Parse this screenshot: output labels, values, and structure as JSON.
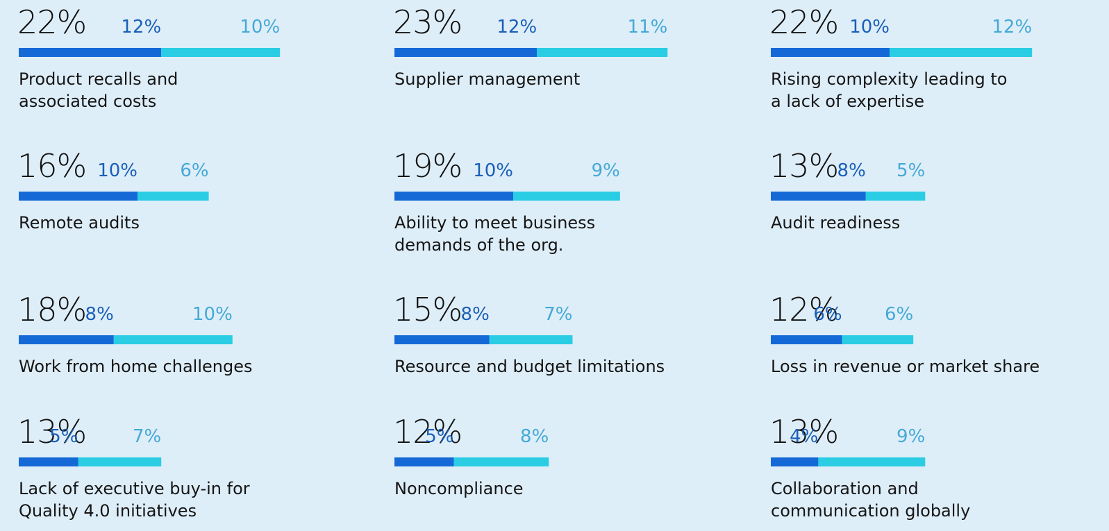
{
  "chart_data": [
    {
      "type": "stacked_bar",
      "title": [
        "Product recalls and",
        "associated costs"
      ],
      "total": 22,
      "total_label": "22%",
      "series": [
        {
          "color": "#1569d6",
          "values": [
            12
          ],
          "value_labels": [
            "12%"
          ]
        },
        {
          "color": "#2acde3",
          "values": [
            10
          ],
          "value_labels": [
            "10%"
          ]
        }
      ]
    },
    {
      "type": "stacked_bar",
      "title": [
        "Supplier management"
      ],
      "total": 23,
      "total_label": "23%",
      "series": [
        {
          "color": "#1569d6",
          "values": [
            12
          ],
          "value_labels": [
            "12%"
          ]
        },
        {
          "color": "#2acde3",
          "values": [
            11
          ],
          "value_labels": [
            "11%"
          ]
        }
      ]
    },
    {
      "type": "stacked_bar",
      "title": [
        "Rising complexity leading to",
        "a lack of expertise"
      ],
      "total": 22,
      "total_label": "22%",
      "series": [
        {
          "color": "#1569d6",
          "values": [
            10
          ],
          "value_labels": [
            "10%"
          ]
        },
        {
          "color": "#2acde3",
          "values": [
            12
          ],
          "value_labels": [
            "12%"
          ]
        }
      ]
    },
    {
      "type": "stacked_bar",
      "title": [
        "Remote audits"
      ],
      "total": 16,
      "total_label": "16%",
      "series": [
        {
          "color": "#1569d6",
          "values": [
            10
          ],
          "value_labels": [
            "10%"
          ]
        },
        {
          "color": "#2acde3",
          "values": [
            6
          ],
          "value_labels": [
            "6%"
          ]
        }
      ]
    },
    {
      "type": "stacked_bar",
      "title": [
        "Ability to meet business",
        "demands of the org."
      ],
      "total": 19,
      "total_label": "19%",
      "series": [
        {
          "color": "#1569d6",
          "values": [
            10
          ],
          "value_labels": [
            "10%"
          ]
        },
        {
          "color": "#2acde3",
          "values": [
            9
          ],
          "value_labels": [
            "9%"
          ]
        }
      ]
    },
    {
      "type": "stacked_bar",
      "title": [
        "Audit readiness"
      ],
      "total": 13,
      "total_label": "13%",
      "series": [
        {
          "color": "#1569d6",
          "values": [
            8
          ],
          "value_labels": [
            "8%"
          ]
        },
        {
          "color": "#2acde3",
          "values": [
            5
          ],
          "value_labels": [
            "5%"
          ]
        }
      ]
    },
    {
      "type": "stacked_bar",
      "title": [
        "Work from home challenges"
      ],
      "total": 18,
      "total_label": "18%",
      "series": [
        {
          "color": "#1569d6",
          "values": [
            8
          ],
          "value_labels": [
            "8%"
          ]
        },
        {
          "color": "#2acde3",
          "values": [
            10
          ],
          "value_labels": [
            "10%"
          ]
        }
      ]
    },
    {
      "type": "stacked_bar",
      "title": [
        "Resource and budget limitations"
      ],
      "total": 15,
      "total_label": "15%",
      "series": [
        {
          "color": "#1569d6",
          "values": [
            8
          ],
          "value_labels": [
            "8%"
          ]
        },
        {
          "color": "#2acde3",
          "values": [
            7
          ],
          "value_labels": [
            "7%"
          ]
        }
      ]
    },
    {
      "type": "stacked_bar",
      "title": [
        "Loss in revenue or market share"
      ],
      "total": 12,
      "total_label": "12%",
      "series": [
        {
          "color": "#1569d6",
          "values": [
            6
          ],
          "value_labels": [
            "6%"
          ]
        },
        {
          "color": "#2acde3",
          "values": [
            6
          ],
          "value_labels": [
            "6%"
          ]
        }
      ]
    },
    {
      "type": "stacked_bar",
      "title": [
        "Lack of executive buy-in for",
        "Quality 4.0 initiatives"
      ],
      "total": 13,
      "total_label": "13%",
      "series": [
        {
          "color": "#1569d6",
          "values": [
            5
          ],
          "value_labels": [
            "5%"
          ]
        },
        {
          "color": "#2acde3",
          "values": [
            7
          ],
          "value_labels": [
            "7%"
          ]
        }
      ]
    },
    {
      "type": "stacked_bar",
      "title": [
        "Noncompliance"
      ],
      "total": 12,
      "total_label": "12%",
      "series": [
        {
          "color": "#1569d6",
          "values": [
            5
          ],
          "value_labels": [
            "5%"
          ]
        },
        {
          "color": "#2acde3",
          "values": [
            8
          ],
          "value_labels": [
            "8%"
          ]
        }
      ]
    },
    {
      "type": "stacked_bar",
      "title": [
        "Collaboration and",
        "communication globally"
      ],
      "total": 13,
      "total_label": "13%",
      "series": [
        {
          "color": "#1569d6",
          "values": [
            4
          ],
          "value_labels": [
            "4%"
          ]
        },
        {
          "color": "#2acde3",
          "values": [
            9
          ],
          "value_labels": [
            "9%"
          ]
        }
      ]
    }
  ]
}
